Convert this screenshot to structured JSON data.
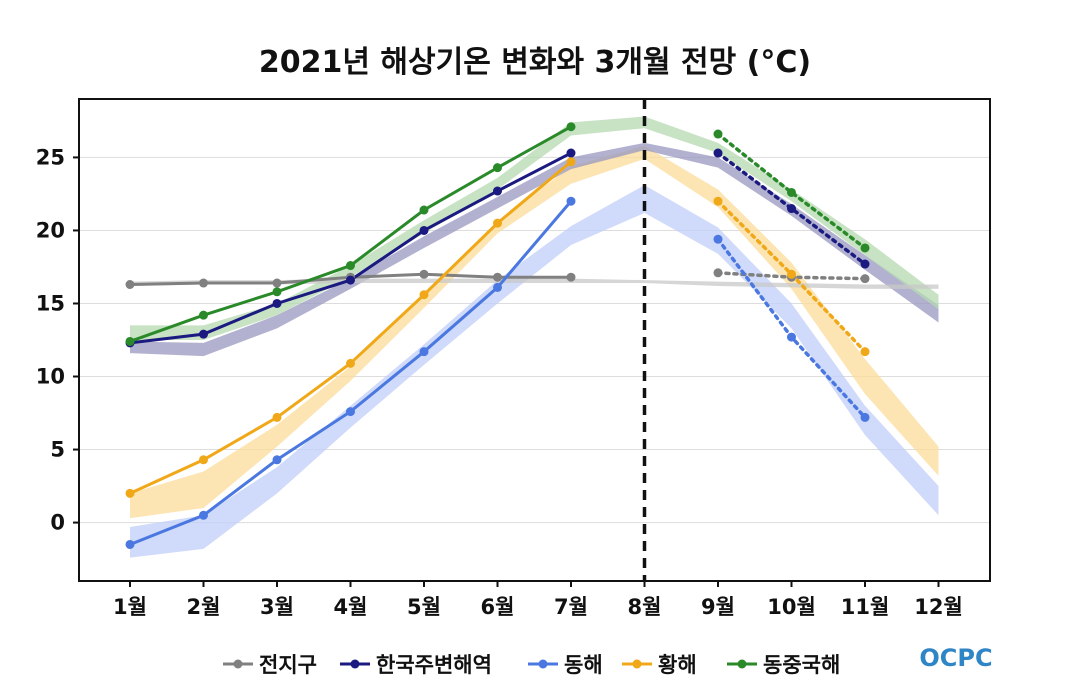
{
  "chart_data": {
    "type": "line",
    "title": "2021년 해상기온 변화와 3개월 전망 (°C)",
    "categories": [
      "1월",
      "2월",
      "3월",
      "4월",
      "5월",
      "6월",
      "7월",
      "8월",
      "9월",
      "10월",
      "11월",
      "12월"
    ],
    "ylim": [
      -4,
      29
    ],
    "yticks": [
      0,
      5,
      10,
      15,
      20,
      25
    ],
    "grid": "horizontal",
    "divider_at": "8월",
    "legend_position": "bottom",
    "series": [
      {
        "name": "전지구",
        "color": "#808080",
        "band_color": "#c8c8c8",
        "observed": [
          16.3,
          16.4,
          16.4,
          16.8,
          17.0,
          16.8,
          16.8
        ],
        "forecast_months": [
          "9월",
          "10월",
          "11월"
        ],
        "forecast": [
          17.1,
          16.8,
          16.7
        ],
        "band_low": [
          16.2,
          16.3,
          16.3,
          16.4,
          16.4,
          16.4,
          16.4,
          16.4,
          16.2,
          16.1,
          16.0,
          16.0
        ],
        "band_high": [
          16.5,
          16.6,
          16.6,
          16.7,
          16.7,
          16.7,
          16.7,
          16.6,
          16.5,
          16.4,
          16.3,
          16.3
        ]
      },
      {
        "name": "한국주변해역",
        "color": "#1a1a80",
        "band_color": "#9898c0",
        "observed": [
          12.3,
          12.9,
          15.0,
          16.6,
          20.0,
          22.7,
          25.3
        ],
        "forecast_months": [
          "9월",
          "10월",
          "11월"
        ],
        "forecast": [
          25.3,
          21.5,
          17.7
        ],
        "band_low": [
          11.6,
          11.4,
          13.3,
          16.0,
          18.8,
          21.5,
          24.2,
          25.5,
          24.3,
          21.0,
          17.3,
          13.7
        ],
        "band_high": [
          12.4,
          12.3,
          14.2,
          16.7,
          19.6,
          22.3,
          25.0,
          26.0,
          25.0,
          21.8,
          18.3,
          14.9
        ]
      },
      {
        "name": "동해",
        "color": "#4a78e0",
        "band_color": "#c0cdf8",
        "observed": [
          -1.5,
          0.5,
          4.3,
          7.6,
          11.7,
          16.1,
          22.0
        ],
        "forecast_months": [
          "9월",
          "10월",
          "11월"
        ],
        "forecast": [
          19.4,
          12.7,
          7.2
        ],
        "band_low": [
          -2.4,
          -1.8,
          2.0,
          6.5,
          10.8,
          15.0,
          19.0,
          21.2,
          18.4,
          13.3,
          6.0,
          0.5
        ],
        "band_high": [
          -0.3,
          0.5,
          3.8,
          8.0,
          12.2,
          16.6,
          20.3,
          23.1,
          20.2,
          15.0,
          8.0,
          2.5
        ]
      },
      {
        "name": "황해",
        "color": "#f0a818",
        "band_color": "#fbdc9a",
        "observed": [
          2.0,
          4.3,
          7.2,
          10.9,
          15.6,
          20.5,
          24.7
        ],
        "forecast_months": [
          "9월",
          "10월",
          "11월"
        ],
        "forecast": [
          22.0,
          17.0,
          11.7
        ],
        "band_low": [
          0.3,
          1.0,
          5.2,
          9.7,
          14.7,
          19.8,
          23.2,
          24.9,
          21.6,
          16.0,
          8.8,
          3.2
        ],
        "band_high": [
          2.0,
          3.5,
          6.7,
          10.7,
          15.7,
          20.6,
          24.4,
          25.8,
          22.8,
          17.8,
          11.2,
          5.2
        ]
      },
      {
        "name": "동중국해",
        "color": "#2a8a2a",
        "band_color": "#b4d9b0",
        "observed": [
          12.4,
          14.2,
          15.8,
          17.6,
          21.4,
          24.3,
          27.1
        ],
        "forecast_months": [
          "9월",
          "10월",
          "11월"
        ],
        "forecast": [
          26.6,
          22.6,
          18.8
        ],
        "band_low": [
          12.5,
          12.5,
          14.2,
          16.8,
          19.8,
          22.8,
          26.5,
          27.0,
          25.3,
          22.0,
          18.3,
          14.6
        ],
        "band_high": [
          13.5,
          13.5,
          15.0,
          17.6,
          20.7,
          23.6,
          27.4,
          27.8,
          26.0,
          22.8,
          19.4,
          15.6
        ]
      }
    ]
  },
  "logo": {
    "text": "OCPC"
  }
}
